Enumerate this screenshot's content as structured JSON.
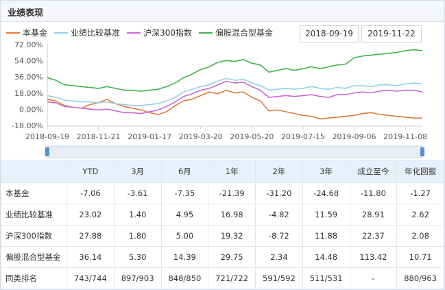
{
  "header": {
    "title": "业绩表现"
  },
  "controls": {
    "start_date": "2018-09-19",
    "end_date": "2019-11-22"
  },
  "chart_data": {
    "type": "line",
    "categories": [
      "2018-09-19",
      null,
      null,
      null,
      null,
      null,
      "2018-11-21",
      null,
      null,
      null,
      null,
      null,
      "2019-01-17",
      null,
      null,
      null,
      null,
      null,
      "2019-03-20",
      null,
      null,
      null,
      null,
      null,
      "2019-05-20",
      null,
      null,
      null,
      null,
      null,
      "2019-07-15",
      null,
      null,
      null,
      null,
      null,
      "2019-09-06",
      null,
      null,
      null,
      null,
      null,
      "2019-11-08",
      null,
      null
    ],
    "series": [
      {
        "name": "本基金",
        "color": "#e8793a",
        "values": [
          12,
          10,
          5,
          3,
          2,
          6,
          8,
          12,
          7,
          4,
          2,
          0,
          -3,
          -5,
          -2,
          5,
          10,
          12,
          16,
          20,
          18,
          22,
          19,
          20,
          14,
          10,
          -1,
          0,
          -2,
          -4,
          -6,
          -7,
          -10,
          -9,
          -8,
          -7,
          -6,
          -4,
          -3,
          -5,
          -6,
          -7,
          -8,
          -9,
          -9
        ]
      },
      {
        "name": "业绩比较基准",
        "color": "#8fd0ec",
        "values": [
          16,
          14,
          11,
          10,
          9,
          9,
          8,
          9,
          7,
          6,
          5,
          5,
          6,
          7,
          10,
          14,
          20,
          23,
          26,
          28,
          32,
          35,
          33,
          34,
          30,
          27,
          22,
          23,
          24,
          23,
          24,
          26,
          24,
          23,
          25,
          24,
          27,
          27,
          26,
          28,
          28,
          27,
          29,
          30,
          29
        ]
      },
      {
        "name": "沪深300指数",
        "color": "#c966d6",
        "values": [
          9,
          8,
          4,
          3,
          2,
          1,
          0,
          1,
          -1,
          -3,
          -3,
          -4,
          -2,
          0,
          4,
          9,
          15,
          18,
          22,
          24,
          28,
          32,
          30,
          31,
          26,
          22,
          14,
          15,
          16,
          15,
          16,
          17,
          15,
          14,
          17,
          17,
          19,
          20,
          19,
          21,
          22,
          21,
          22,
          22,
          20
        ]
      },
      {
        "name": "偏股混合型基金",
        "color": "#3cb44a",
        "values": [
          36,
          33,
          28,
          27,
          26,
          25,
          24,
          26,
          24,
          22,
          22,
          21,
          22,
          23,
          26,
          30,
          36,
          40,
          45,
          48,
          53,
          55,
          54,
          56,
          52,
          50,
          42,
          44,
          46,
          44,
          46,
          48,
          46,
          48,
          50,
          51,
          58,
          60,
          61,
          62,
          63,
          64,
          66,
          67,
          66
        ]
      }
    ],
    "ylim": [
      -18,
      72
    ],
    "yticks": [
      {
        "value": 72,
        "label": "72.00%"
      },
      {
        "value": 54,
        "label": "54.00%"
      },
      {
        "value": 36,
        "label": "36.00%"
      },
      {
        "value": 18,
        "label": "18.00%"
      },
      {
        "value": 0,
        "label": "0.00%"
      },
      {
        "value": -18,
        "label": "-18.00%"
      }
    ],
    "grid": false
  },
  "table": {
    "header": [
      "YTD",
      "3月",
      "6月",
      "1年",
      "2年",
      "3年",
      "成立至今",
      "年化回报"
    ],
    "rows": [
      [
        "本基金",
        "-7.06",
        "-3.61",
        "-7.35",
        "-21.39",
        "-31.20",
        "-24.68",
        "-11.80",
        "-1.27"
      ],
      [
        "业绩比较基准",
        "23.02",
        "1.40",
        "4.95",
        "16.98",
        "-4.82",
        "11.59",
        "28.91",
        "2.62"
      ],
      [
        "沪深300指数",
        "27.88",
        "1.80",
        "5.00",
        "19.32",
        "-8.72",
        "11.88",
        "22.37",
        "2.08"
      ],
      [
        "偏股混合型基金",
        "36.14",
        "5.30",
        "14.39",
        "29.75",
        "2.34",
        "14.48",
        "113.42",
        "10.71"
      ],
      [
        "同类排名",
        "743/744",
        "897/903",
        "848/850",
        "721/722",
        "591/592",
        "511/531",
        "-",
        "880/963"
      ]
    ]
  }
}
